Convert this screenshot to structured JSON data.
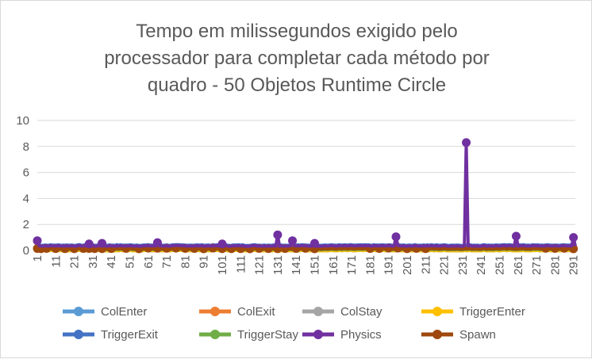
{
  "chart_data": {
    "type": "line",
    "title_lines": [
      "Tempo em milissegundos exigido pelo",
      "processador para completar cada método por",
      "quadro - 50 Objetos Runtime Circle"
    ],
    "x_ticks": [
      "1",
      "11",
      "21",
      "31",
      "41",
      "51",
      "61",
      "71",
      "81",
      "91",
      "101",
      "111",
      "121",
      "131",
      "141",
      "151",
      "161",
      "171",
      "181",
      "191",
      "201",
      "211",
      "221",
      "231",
      "241",
      "251",
      "261",
      "271",
      "281",
      "291"
    ],
    "x_range": [
      1,
      292
    ],
    "ylim": [
      0,
      10
    ],
    "y_ticks": [
      "0",
      "2",
      "4",
      "6",
      "8",
      "10"
    ],
    "grid": "horizontal",
    "legend_position": "bottom",
    "series": [
      {
        "name": "ColEnter",
        "color": "#5b9bd5",
        "baseline": 0.02,
        "spikes": []
      },
      {
        "name": "ColExit",
        "color": "#ed7d31",
        "baseline": 0.02,
        "spikes": []
      },
      {
        "name": "ColStay",
        "color": "#a5a5a5",
        "baseline": 0.02,
        "spikes": []
      },
      {
        "name": "TriggerEnter",
        "color": "#ffc000",
        "baseline": 0.02,
        "spikes": []
      },
      {
        "name": "TriggerExit",
        "color": "#4472c4",
        "baseline": 0.35,
        "spikes": []
      },
      {
        "name": "TriggerStay",
        "color": "#70ad47",
        "baseline": 0.1,
        "spikes": []
      },
      {
        "name": "Physics",
        "color": "#7030a0",
        "baseline": 0.35,
        "spikes": [
          [
            1,
            0.75
          ],
          [
            29,
            0.5
          ],
          [
            36,
            0.55
          ],
          [
            66,
            0.6
          ],
          [
            101,
            0.5
          ],
          [
            131,
            1.2
          ],
          [
            139,
            0.75
          ],
          [
            151,
            0.55
          ],
          [
            195,
            1.05
          ],
          [
            233,
            8.3
          ],
          [
            260,
            1.1
          ],
          [
            291,
            1.0
          ]
        ]
      },
      {
        "name": "Spawn",
        "color": "#9e480e",
        "baseline": 0.15,
        "markers": [
          1,
          3,
          6,
          11,
          16,
          21,
          26,
          29,
          32,
          36,
          41,
          49,
          56,
          61,
          66,
          71,
          76,
          81,
          86,
          91,
          96,
          101,
          106,
          111,
          116,
          121,
          126,
          131,
          135,
          141,
          146,
          151,
          181,
          186,
          191,
          196,
          201,
          206,
          211,
          276,
          281,
          286,
          291
        ]
      }
    ]
  }
}
